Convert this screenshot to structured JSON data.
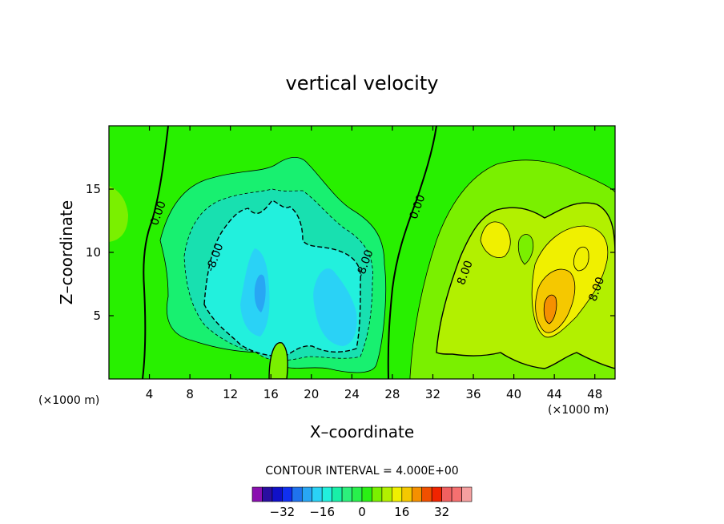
{
  "chart_data": {
    "type": "heatmap",
    "title": "vertical velocity",
    "xlabel": "X–coordinate",
    "ylabel": "Z–coordinate",
    "x_unit_left": "(×1000 m)",
    "x_unit_right": "(×1000 m)",
    "xlim": [
      0,
      50
    ],
    "ylim": [
      0,
      20
    ],
    "xticks": [
      4,
      8,
      12,
      16,
      20,
      24,
      28,
      32,
      36,
      40,
      44,
      48
    ],
    "yticks": [
      5,
      10,
      15
    ],
    "contour_interval_label": "CONTOUR INTERVAL = 4.000E+00",
    "contour_interval": 4,
    "contour_labels": [
      {
        "text": "0.00",
        "x": 5.2,
        "z": 13.0
      },
      {
        "text": "0.00",
        "x": 30.8,
        "z": 13.5
      },
      {
        "text": "-8.00",
        "x": 10.8,
        "z": 9.5
      },
      {
        "text": "-8.00",
        "x": 25.6,
        "z": 9.0
      },
      {
        "text": "8.00",
        "x": 35.5,
        "z": 8.3
      },
      {
        "text": "8.00",
        "x": 48.5,
        "z": 7.0
      }
    ],
    "colorbar": {
      "levels": [
        -36,
        -32,
        -28,
        -24,
        -20,
        -16,
        -12,
        -8,
        -4,
        0,
        4,
        8,
        12,
        16,
        20,
        24,
        28,
        32,
        36
      ],
      "tick_labels": [
        "−32",
        "−16",
        "0",
        "16",
        "32"
      ],
      "tick_values": [
        -32,
        -16,
        0,
        16,
        32
      ],
      "colors": [
        "#8a10b0",
        "#2a0ea0",
        "#1010c8",
        "#1030f0",
        "#1f73ee",
        "#28a6f4",
        "#2ad2f6",
        "#22f0dd",
        "#18f0a8",
        "#2cf07c",
        "#28f04c",
        "#2af014",
        "#7af000",
        "#b2f000",
        "#f0f000",
        "#f5c800",
        "#f59000",
        "#f05000",
        "#f02400",
        "#f06060",
        "#f57070",
        "#f5a0a0"
      ]
    },
    "features": [
      {
        "kind": "downdraft",
        "x": 15,
        "z": 6.5,
        "min": -16
      },
      {
        "kind": "downdraft",
        "x": 22,
        "z": 5.5,
        "min": -16
      },
      {
        "kind": "updraft",
        "x": 44,
        "z": 6.0,
        "max": 24
      },
      {
        "kind": "updraft",
        "x": 38,
        "z": 11.0,
        "max": 12
      },
      {
        "kind": "updraft",
        "x": 47,
        "z": 10.0,
        "max": 12
      }
    ]
  }
}
